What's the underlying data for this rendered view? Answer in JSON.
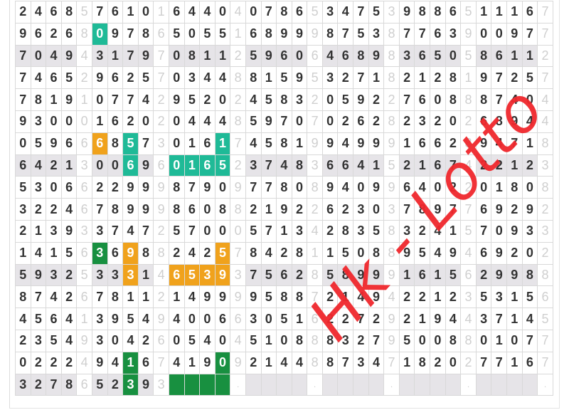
{
  "rows": [
    {
      "groups": [
        "2468",
        "7610",
        "6440",
        "0786",
        "3475",
        "9886",
        "1116"
      ],
      "seps": [
        "5",
        "1",
        "4",
        "5",
        "3",
        "5",
        "7"
      ]
    },
    {
      "groups": [
        "9626",
        "0978",
        "5055",
        "6899",
        "8753",
        "7763",
        "0097"
      ],
      "seps": [
        "8",
        "6",
        "1",
        "9",
        "8",
        "9",
        "7"
      ]
    },
    {
      "groups": [
        "7049",
        "3179",
        "0811",
        "5960",
        "4689",
        "3650",
        "8611"
      ],
      "seps": [
        "4",
        "7",
        "2",
        "6",
        "8",
        "5",
        "2"
      ]
    },
    {
      "groups": [
        "7465",
        "9625",
        "0344",
        "8159",
        "3271",
        "2128",
        "9725"
      ],
      "seps": [
        "2",
        "7",
        "8",
        "5",
        "8",
        "1",
        "7"
      ]
    },
    {
      "groups": [
        "7819",
        "0774",
        "9520",
        "4583",
        "0592",
        "7608",
        "8740"
      ],
      "seps": [
        "1",
        "2",
        "2",
        "2",
        "2",
        "8",
        "4"
      ]
    },
    {
      "groups": [
        "9300",
        "1620",
        "0444",
        "5970",
        "0262",
        "2320",
        "6894"
      ],
      "seps": [
        "0",
        "2",
        "8",
        "7",
        "8",
        "2",
        "4"
      ]
    },
    {
      "groups": [
        "0596",
        "6857",
        "0161",
        "4581",
        "9499",
        "1662",
        "9471"
      ],
      "seps": [
        "6",
        "3",
        "7",
        "9",
        "9",
        "8",
        "8"
      ]
    },
    {
      "groups": [
        "6421",
        "0069",
        "0165",
        "3748",
        "6641",
        "2167",
        "2212"
      ],
      "seps": [
        "3",
        "6",
        "2",
        "3",
        "5",
        "4",
        "3"
      ]
    },
    {
      "groups": [
        "5306",
        "2299",
        "8790",
        "7780",
        "9409",
        "6402",
        "0180"
      ],
      "seps": [
        "6",
        "9",
        "9",
        "8",
        "9",
        "2",
        "8"
      ]
    },
    {
      "groups": [
        "3224",
        "7899",
        "8608",
        "2192",
        "6230",
        "7897",
        "6929"
      ],
      "seps": [
        "6",
        "9",
        "8",
        "2",
        "3",
        "7",
        "2"
      ]
    },
    {
      "groups": [
        "2139",
        "3747",
        "5700",
        "5713",
        "2835",
        "3241",
        "7093"
      ],
      "seps": [
        "3",
        "2",
        "0",
        "4",
        "8",
        "5",
        "3"
      ]
    },
    {
      "groups": [
        "1415",
        "3698",
        "2425",
        "8428",
        "1508",
        "9549",
        "6920"
      ],
      "seps": [
        "6",
        "8",
        "7",
        "1",
        "8",
        "4",
        "2"
      ]
    },
    {
      "groups": [
        "5932",
        "3331",
        "6539",
        "7562",
        "5899",
        "1615",
        "2998"
      ],
      "seps": [
        "5",
        "4",
        "3",
        "8",
        "9",
        "6",
        "8"
      ]
    },
    {
      "groups": [
        "8742",
        "7811",
        "1499",
        "9588",
        "2149",
        "2212",
        "5315"
      ],
      "seps": [
        "6",
        "2",
        "9",
        "7",
        "4",
        "3",
        "6"
      ]
    },
    {
      "groups": [
        "4564",
        "3954",
        "4006",
        "3051",
        "2272",
        "2194",
        "3714"
      ],
      "seps": [
        "1",
        "9",
        "6",
        "6",
        "9",
        "4",
        "5"
      ]
    },
    {
      "groups": [
        "2354",
        "3042",
        "0540",
        "5108",
        "8327",
        "5008",
        "0107"
      ],
      "seps": [
        "9",
        "6",
        "4",
        "8",
        "9",
        "8",
        "7"
      ]
    },
    {
      "groups": [
        "0222",
        "9416",
        "4190",
        "2144",
        "8734",
        "1820",
        "7716"
      ],
      "seps": [
        "4",
        "7",
        "9",
        "8",
        "7",
        "2",
        "7"
      ]
    },
    {
      "groups": [
        "3278",
        "5239",
        "    ",
        "    ",
        "    ",
        "    ",
        "    "
      ],
      "seps": [
        "6",
        "3",
        ".",
        ".",
        ".",
        ".",
        "."
      ]
    }
  ],
  "shaded_rows": [
    2,
    7,
    12,
    17
  ],
  "colors": {
    "teal": "#1fba97",
    "orange": "#f0a21c",
    "green": "#189040"
  },
  "highlights": [
    {
      "row": 1,
      "col": 5,
      "color": "teal"
    },
    {
      "row": 6,
      "col": 5,
      "color": "orange"
    },
    {
      "row": 6,
      "col": 7,
      "color": "teal"
    },
    {
      "row": 6,
      "col": 13,
      "color": "teal"
    },
    {
      "row": 7,
      "col": 7,
      "color": "teal"
    },
    {
      "row": 7,
      "col": 10,
      "color": "teal"
    },
    {
      "row": 7,
      "col": 11,
      "color": "teal"
    },
    {
      "row": 7,
      "col": 12,
      "color": "teal"
    },
    {
      "row": 7,
      "col": 13,
      "color": "teal"
    },
    {
      "row": 11,
      "col": 5,
      "color": "green"
    },
    {
      "row": 11,
      "col": 7,
      "color": "orange"
    },
    {
      "row": 11,
      "col": 13,
      "color": "orange"
    },
    {
      "row": 12,
      "col": 7,
      "color": "orange"
    },
    {
      "row": 12,
      "col": 10,
      "color": "orange"
    },
    {
      "row": 12,
      "col": 11,
      "color": "orange"
    },
    {
      "row": 12,
      "col": 12,
      "color": "orange"
    },
    {
      "row": 12,
      "col": 13,
      "color": "orange"
    },
    {
      "row": 16,
      "col": 7,
      "color": "green"
    },
    {
      "row": 16,
      "col": 13,
      "color": "green"
    },
    {
      "row": 17,
      "col": 7,
      "color": "green"
    },
    {
      "row": 17,
      "col": 10,
      "color": "green"
    },
    {
      "row": 17,
      "col": 11,
      "color": "green"
    },
    {
      "row": 17,
      "col": 12,
      "color": "green"
    },
    {
      "row": 17,
      "col": 13,
      "color": "green"
    }
  ],
  "watermark": "Hk - Lotto"
}
